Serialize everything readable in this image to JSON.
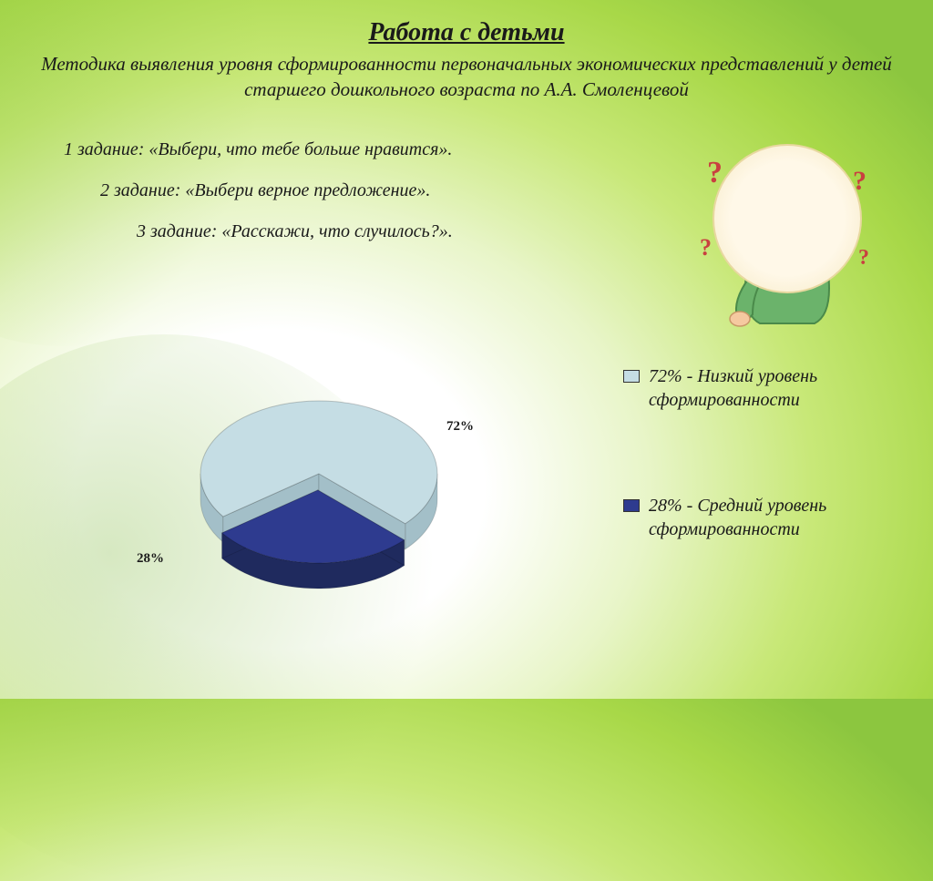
{
  "title": "Работа с детьми",
  "subtitle": "Методика выявления уровня сформированности первоначальных экономических представлений у детей старшего дошкольного возраста по А.А. Смоленцевой",
  "tasks": [
    "1 задание: «Выбери, что тебе больше нравится».",
    "2 задание: «Выбери верное предложение».",
    "3 задание: «Расскажи, что случилось?»."
  ],
  "chart": {
    "type": "pie",
    "slices": [
      {
        "label": "72% - Низкий уровень сформированности",
        "value": 72,
        "display": "72%",
        "color": "#c5dde4",
        "color_side": "#a3bfc8"
      },
      {
        "label": "28% - Средний уровень сформированности",
        "value": 28,
        "display": "28%",
        "color": "#2e3b8f",
        "color_side": "#1f2a5e"
      }
    ],
    "explode_index": 1,
    "background": "transparent",
    "label_fontsize": 15,
    "label_color": "#1a1a1a",
    "legend_fontsize": 20
  },
  "illustration": {
    "description": "thinking-child-with-question-marks",
    "q_color": "#c94040",
    "shirt_color": "#6bb36b",
    "hair_color": "#8b5a2b",
    "skin_color": "#f5c9a0"
  },
  "colors": {
    "text": "#1a1a1a",
    "bg_gradient_inner": "#ffffff",
    "bg_gradient_outer": "#8cc63f"
  }
}
